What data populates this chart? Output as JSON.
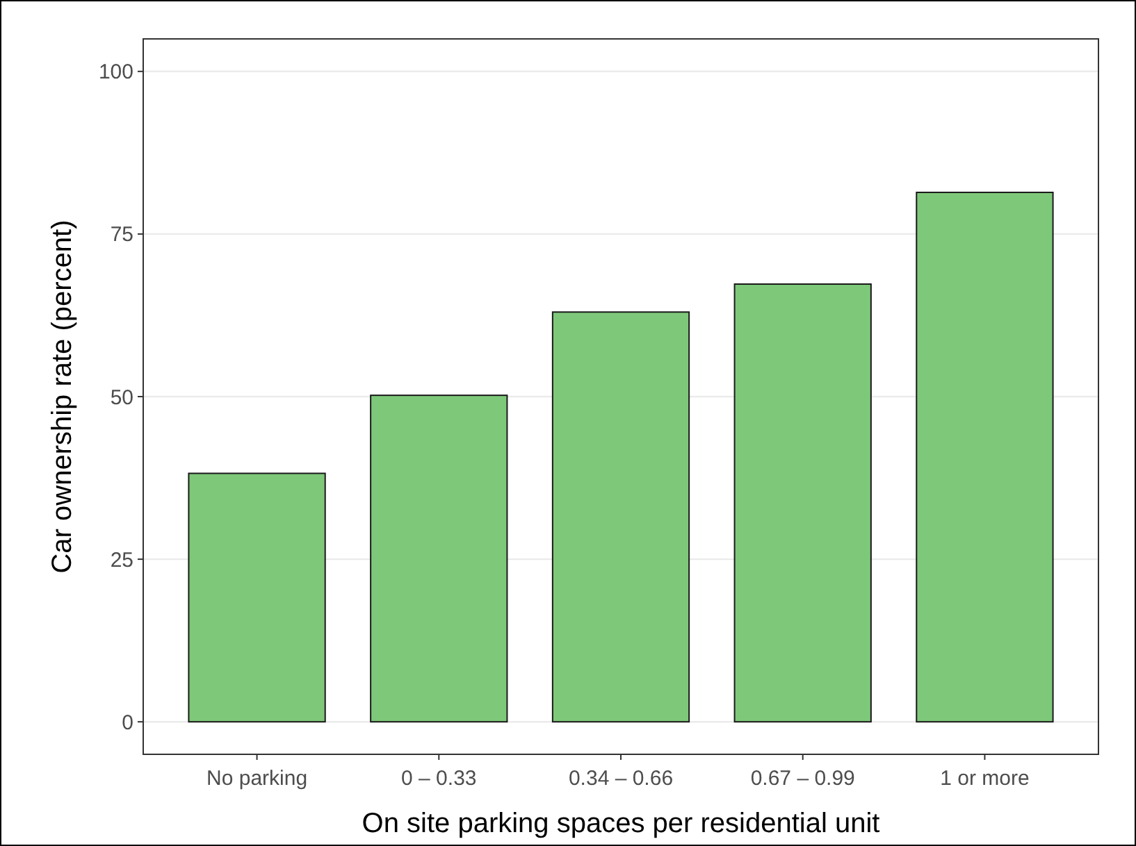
{
  "chart_data": {
    "type": "bar",
    "xlabel": "On site parking spaces per residential unit",
    "ylabel": "Car ownership rate (percent)",
    "categories": [
      "No parking",
      "0 – 0.33",
      "0.34 – 0.66",
      "0.67 – 0.99",
      "1 or more"
    ],
    "values": [
      38.2,
      50.2,
      63.0,
      67.3,
      81.4
    ],
    "color": "#7ec87a",
    "ylim": [
      -5,
      105
    ],
    "yticks": [
      0,
      25,
      50,
      75,
      100
    ],
    "grid": true
  }
}
